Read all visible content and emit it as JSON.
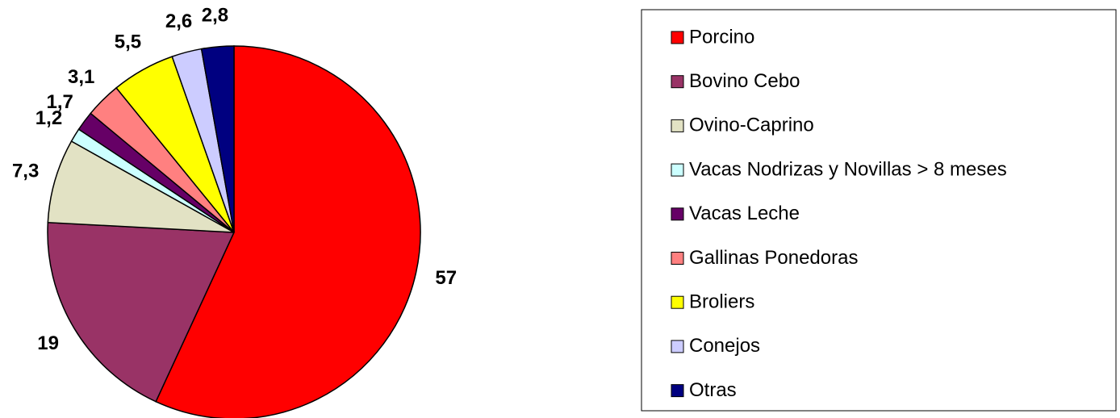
{
  "chart_data": {
    "type": "pie",
    "categories": [
      "Porcino",
      "Bovino Cebo",
      "Ovino-Caprino",
      "Vacas Nodrizas y Novillas > 8 meses",
      "Vacas Leche",
      "Gallinas Ponedoras",
      "Broliers",
      "Conejos",
      "Otras"
    ],
    "values": [
      57,
      19,
      7.3,
      1.2,
      1.7,
      3.1,
      5.5,
      2.6,
      2.8
    ],
    "value_labels": [
      "57",
      "19",
      "7,3",
      "1,2",
      "1,7",
      "3,1",
      "5,5",
      "2,6",
      "2,8"
    ],
    "colors": [
      "#ff0000",
      "#993366",
      "#e2e2c4",
      "#ccffff",
      "#660066",
      "#ff8080",
      "#ffff00",
      "#ccccff",
      "#000080"
    ],
    "legend": "right"
  }
}
